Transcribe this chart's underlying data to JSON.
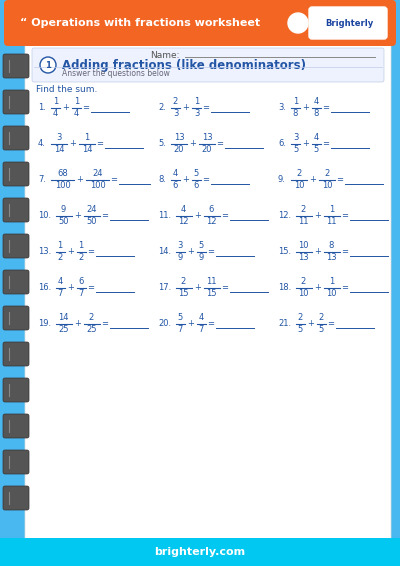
{
  "title": "“ Operations with fractions worksheet",
  "bg_outer": "#4ab8f0",
  "header_bg": "#f26522",
  "header_text_color": "#ffffff",
  "paper_bg": "#ffffff",
  "section_title": "Adding fractions (like denominators)",
  "section_subtitle": "Answer the questions below",
  "section_number": "1",
  "instruction": "Find the sum.",
  "name_label": "Name:",
  "section_title_color": "#2255a4",
  "text_color": "#2255a4",
  "footer_text": "brighterly.com",
  "footer_bg": "#00c8f0",
  "footer_text_color": "#ffffff",
  "binder_color": "#555555",
  "binder_edge": "#333333",
  "problems": [
    {
      "num": "1.",
      "frac1n": "1",
      "frac1d": "4",
      "frac2n": "1",
      "frac2d": "4"
    },
    {
      "num": "2.",
      "frac1n": "2",
      "frac1d": "3",
      "frac2n": "1",
      "frac2d": "3"
    },
    {
      "num": "3.",
      "frac1n": "1",
      "frac1d": "8",
      "frac2n": "4",
      "frac2d": "8"
    },
    {
      "num": "4.",
      "frac1n": "3",
      "frac1d": "14",
      "frac2n": "1",
      "frac2d": "14"
    },
    {
      "num": "5.",
      "frac1n": "13",
      "frac1d": "20",
      "frac2n": "13",
      "frac2d": "20"
    },
    {
      "num": "6.",
      "frac1n": "3",
      "frac1d": "5",
      "frac2n": "4",
      "frac2d": "5"
    },
    {
      "num": "7.",
      "frac1n": "68",
      "frac1d": "100",
      "frac2n": "24",
      "frac2d": "100"
    },
    {
      "num": "8.",
      "frac1n": "4",
      "frac1d": "6",
      "frac2n": "5",
      "frac2d": "6"
    },
    {
      "num": "9.",
      "frac1n": "2",
      "frac1d": "10",
      "frac2n": "2",
      "frac2d": "10"
    },
    {
      "num": "10.",
      "frac1n": "9",
      "frac1d": "50",
      "frac2n": "24",
      "frac2d": "50"
    },
    {
      "num": "11.",
      "frac1n": "4",
      "frac1d": "12",
      "frac2n": "6",
      "frac2d": "12"
    },
    {
      "num": "12.",
      "frac1n": "2",
      "frac1d": "11",
      "frac2n": "1",
      "frac2d": "11"
    },
    {
      "num": "13.",
      "frac1n": "1",
      "frac1d": "2",
      "frac2n": "1",
      "frac2d": "2"
    },
    {
      "num": "14.",
      "frac1n": "3",
      "frac1d": "9",
      "frac2n": "5",
      "frac2d": "9"
    },
    {
      "num": "15.",
      "frac1n": "10",
      "frac1d": "13",
      "frac2n": "8",
      "frac2d": "13"
    },
    {
      "num": "16.",
      "frac1n": "4",
      "frac1d": "7",
      "frac2n": "6",
      "frac2d": "7"
    },
    {
      "num": "17.",
      "frac1n": "2",
      "frac1d": "15",
      "frac2n": "11",
      "frac2d": "15"
    },
    {
      "num": "18.",
      "frac1n": "2",
      "frac1d": "10",
      "frac2n": "1",
      "frac2d": "10"
    },
    {
      "num": "19.",
      "frac1n": "14",
      "frac1d": "25",
      "frac2n": "2",
      "frac2d": "25"
    },
    {
      "num": "20.",
      "frac1n": "5",
      "frac1d": "7",
      "frac2n": "4",
      "frac2d": "7"
    },
    {
      "num": "21.",
      "frac1n": "2",
      "frac1d": "5",
      "frac2n": "2",
      "frac2d": "5"
    }
  ]
}
